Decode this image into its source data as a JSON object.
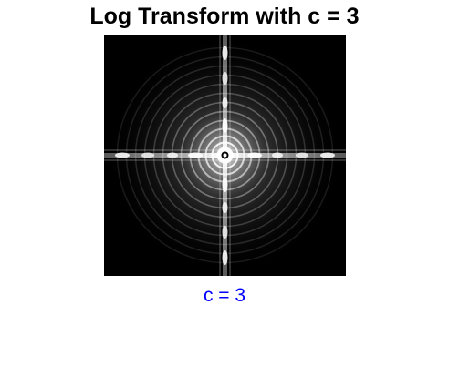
{
  "figure": {
    "title": "Log Transform with c = 3",
    "caption": "c = 3",
    "caption_color": "#0000ff",
    "background_color": "#ffffff",
    "image_background": "#000000"
  }
}
